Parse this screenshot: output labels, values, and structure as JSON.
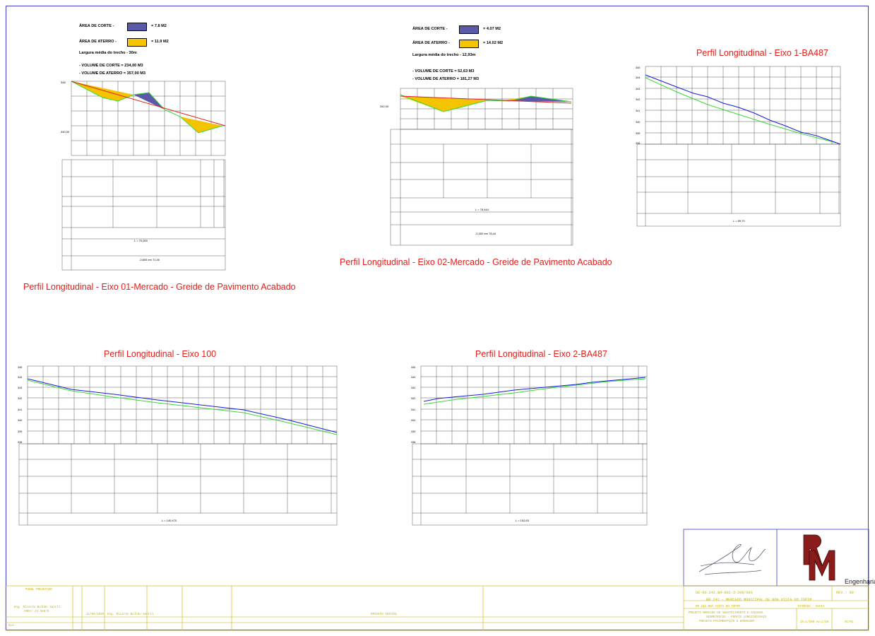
{
  "profile1": {
    "title": "Perfil Longitudinal - Eixo 01-Mercado - Greide de Pavimento Acabado",
    "legend": {
      "cut_label": "ÁREA DE CORTE -",
      "cut_value": "= 7.8 M2",
      "fill_label": "ÁREA DE ATERRO -",
      "fill_value": "= 11.9 M2",
      "width_text": "Largura média do trecho - 30m",
      "vol_cut": "- VOLUME DE CORTE = 234,00 M3",
      "vol_fill": "- VOLUME DE ATERRO = 357,00 M3"
    },
    "length_label": "L = 70,000",
    "slope_label": "-0,805 em 71,00"
  },
  "profile2": {
    "title": "Perfil Longitudinal - Eixo 02-Mercado - Greide de Pavimento Acabado",
    "legend": {
      "cut_label": "ÁREA DE CORTE -",
      "cut_value": "= 4.07 M2",
      "fill_label": "ÁREA DE ATERRO -",
      "fill_value": "= 14.02 M2",
      "width_text": "Largura média do trecho - 12,93m",
      "vol_cut": "- VOLUME DE CORTE = 52,63 M3",
      "vol_fill": "- VOLUME DE ATERRO = 181,27 M3"
    },
    "length_label": "L = 78,444",
    "slope_label": "-0,300 em 78,44"
  },
  "profile3": {
    "title": "Perfil Longitudinal - Eixo 1-BA487",
    "length_label": "L = 89,70"
  },
  "profile4": {
    "title": "Perfil Longitudinal - Eixo 100",
    "length_label": "L = 140,470"
  },
  "profile5": {
    "title": "Perfil Longitudinal - Eixo 2-BA487",
    "length_label": "L = 152,63"
  },
  "colors": {
    "cut": "#5a5aa8",
    "fill": "#f5c400",
    "terrain": "#1a1ae0",
    "grade": "#3ad83a",
    "red_line": "#e0201c",
    "title_block": "#c8b400",
    "frame": "#3a3ad0"
  },
  "title_block": {
    "header_left": "PUEBL PROJETADO",
    "engineer": "Eng. Ricardo Bulhão Santti",
    "crea": "CREA: 42.368/D",
    "row1_date": "11/06/2020",
    "row1_author": "Eng. Ricardo Bulhão Santti",
    "emission": "EMISSÃO INICIAL",
    "doc_id": "DE-00.242.BA-001-3-200/001",
    "rev": "REV.: 00",
    "project": "BR 242 - MERCADO MUNICIPAL DE BOA VISTA DO TUPIM",
    "city": "BR 242 BOA VISTA DO TUPIM",
    "place": "ESTRADA - BAHIA",
    "description_1": "PROJETO MERCADO DE ABASTECIMENTO E ACESSOS",
    "description_2": "GEOMETRICOS - PERFIS LONGITUDINAIS",
    "description_3": "PROJETO PAVIMENTAÇÃO E DRENAGEM",
    "scale": "1h=1/500 Vv=1/50",
    "sheet": "01/01",
    "file": "ELA-",
    "logo_caption": "Engenharia"
  }
}
